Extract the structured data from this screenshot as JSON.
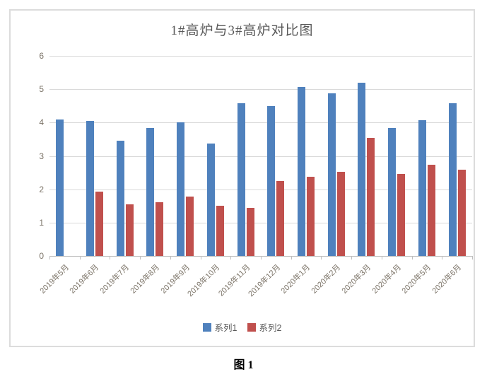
{
  "caption": "图 1",
  "chart_data": {
    "type": "bar",
    "title": "1#高炉与3#高炉对比图",
    "categories": [
      "2019年5月",
      "2019年6月",
      "2019年7月",
      "2019年8月",
      "2019年9月",
      "2019年10月",
      "2019年11月",
      "2019年12月",
      "2020年1月",
      "2020年2月",
      "2020年3月",
      "2020年4月",
      "2020年5月",
      "2020年6月"
    ],
    "series": [
      {
        "name": "系列1",
        "color": "#4F81BD",
        "values": [
          4.1,
          4.05,
          3.45,
          3.83,
          4.0,
          3.38,
          4.57,
          4.5,
          5.07,
          4.88,
          5.2,
          3.83,
          4.07,
          4.57
        ]
      },
      {
        "name": "系列2",
        "color": "#C0504D",
        "values": [
          null,
          1.93,
          1.55,
          1.61,
          1.79,
          1.5,
          1.45,
          2.24,
          2.38,
          2.53,
          3.55,
          2.45,
          2.74,
          2.58
        ]
      }
    ],
    "ylim": [
      0,
      6
    ],
    "ytick_step": 1,
    "grid": true,
    "legend_position": "bottom",
    "colors": {
      "gridline": "#D9D9D9",
      "axis": "#BFBFBF",
      "tick_label": "#7C7468",
      "title_text": "#595959",
      "frame_border": "#DCDCDC"
    }
  }
}
